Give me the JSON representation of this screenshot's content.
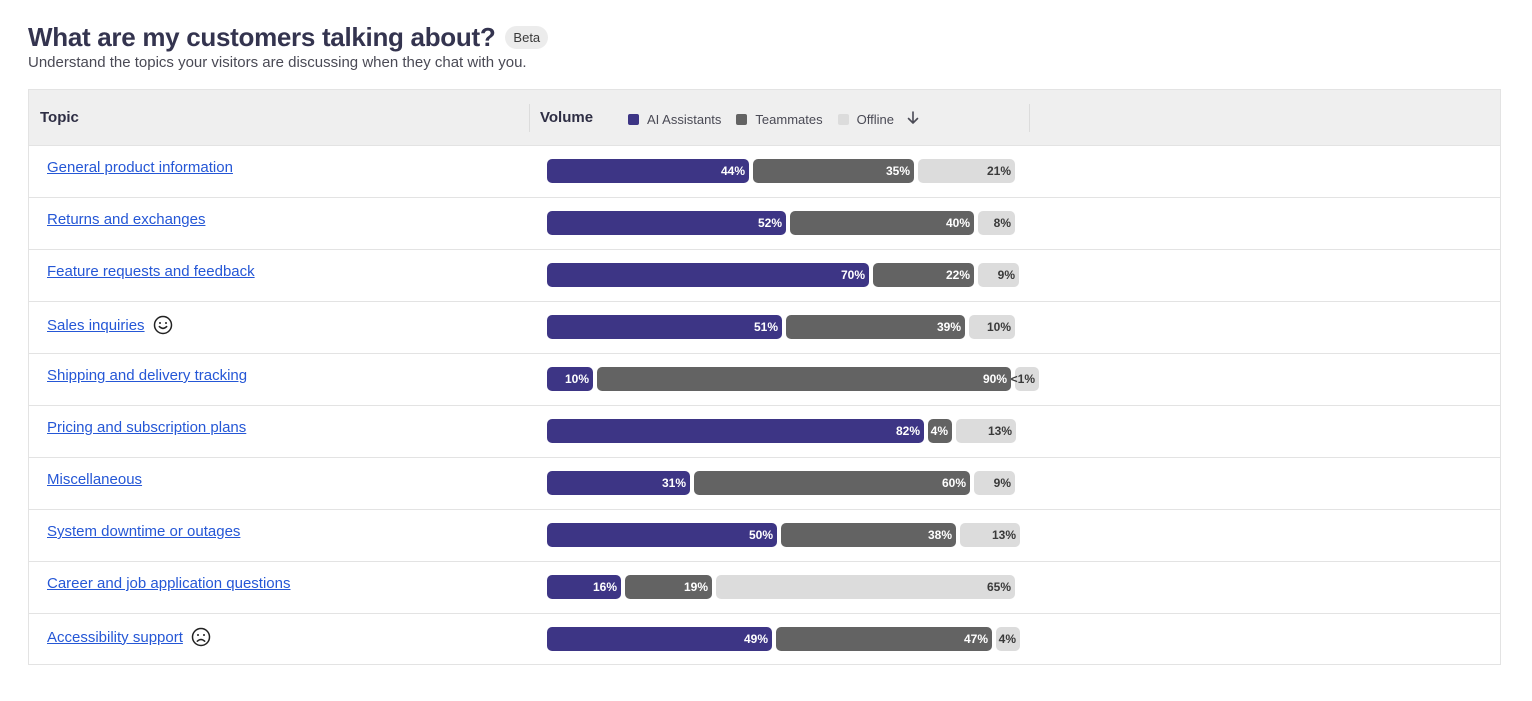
{
  "header": {
    "title": "What are my customers talking about?",
    "badge": "Beta",
    "subtitle": "Understand the topics your visitors are discussing when they chat with you."
  },
  "table": {
    "col_topic": "Topic",
    "col_volume": "Volume",
    "legend": {
      "ai": "AI Assistants",
      "teammates": "Teammates",
      "offline": "Offline"
    },
    "colors": {
      "ai": "#3d3585",
      "teammates": "#636363",
      "offline": "#dcdcdc",
      "link": "#2557d6"
    },
    "rows": [
      {
        "topic": "General product information",
        "ai": 44,
        "teammates": 35,
        "offline": 21,
        "ai_label": "44%",
        "tm_label": "35%",
        "off_label": "21%",
        "sentiment": ""
      },
      {
        "topic": "Returns and exchanges",
        "ai": 52,
        "teammates": 40,
        "offline": 8,
        "ai_label": "52%",
        "tm_label": "40%",
        "off_label": "8%",
        "sentiment": ""
      },
      {
        "topic": "Feature requests and feedback",
        "ai": 70,
        "teammates": 22,
        "offline": 9,
        "ai_label": "70%",
        "tm_label": "22%",
        "off_label": "9%",
        "sentiment": ""
      },
      {
        "topic": "Sales inquiries",
        "ai": 51,
        "teammates": 39,
        "offline": 10,
        "ai_label": "51%",
        "tm_label": "39%",
        "off_label": "10%",
        "sentiment": "happy-face-icon"
      },
      {
        "topic": "Shipping and delivery tracking",
        "ai": 10,
        "teammates": 90,
        "offline": 0.5,
        "ai_label": "10%",
        "tm_label": "90%",
        "off_label": "<1%",
        "sentiment": ""
      },
      {
        "topic": "Pricing and subscription plans",
        "ai": 82,
        "teammates": 4,
        "offline": 13,
        "ai_label": "82%",
        "tm_label": "4%",
        "off_label": "13%",
        "sentiment": ""
      },
      {
        "topic": "Miscellaneous",
        "ai": 31,
        "teammates": 60,
        "offline": 9,
        "ai_label": "31%",
        "tm_label": "60%",
        "off_label": "9%",
        "sentiment": ""
      },
      {
        "topic": "System downtime or outages",
        "ai": 50,
        "teammates": 38,
        "offline": 13,
        "ai_label": "50%",
        "tm_label": "38%",
        "off_label": "13%",
        "sentiment": ""
      },
      {
        "topic": "Career and job application questions",
        "ai": 16,
        "teammates": 19,
        "offline": 65,
        "ai_label": "16%",
        "tm_label": "19%",
        "off_label": "65%",
        "sentiment": ""
      },
      {
        "topic": "Accessibility support",
        "ai": 49,
        "teammates": 47,
        "offline": 4,
        "ai_label": "49%",
        "tm_label": "47%",
        "off_label": "4%",
        "sentiment": "sad-face-icon"
      }
    ]
  }
}
